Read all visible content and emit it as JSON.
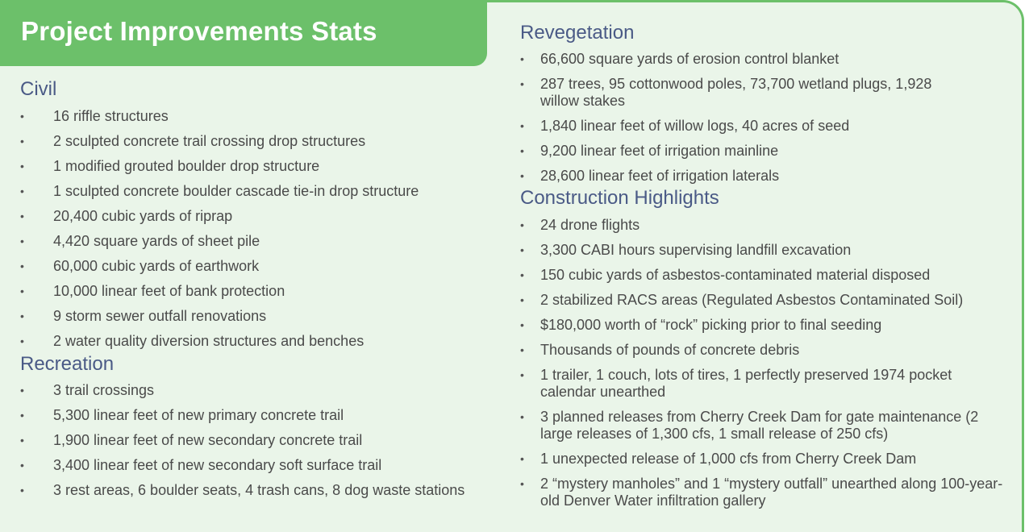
{
  "header": {
    "title": "Project Improvements Stats"
  },
  "colors": {
    "accent": "#6cc06a",
    "background": "#eaf5e9",
    "section_title": "#4a5a86",
    "body_text": "#4a4a4a"
  },
  "bullet": "•",
  "sections": {
    "civil": {
      "title": "Civil",
      "items": [
        "16 riffle structures",
        "2 sculpted concrete trail crossing drop structures",
        "1 modified grouted boulder drop structure",
        "1 sculpted concrete boulder cascade tie-in drop structure",
        "20,400 cubic yards of riprap",
        "4,420 square yards of sheet pile",
        "60,000 cubic yards of earthwork",
        "10,000 linear feet of bank protection",
        "9 storm sewer outfall renovations",
        "2 water quality diversion structures and benches"
      ]
    },
    "recreation": {
      "title": "Recreation",
      "items": [
        "3 trail crossings",
        "5,300 linear feet of new primary concrete trail",
        "1,900 linear feet of new secondary concrete trail",
        "3,400 linear feet of new secondary soft surface trail",
        "3 rest areas, 6 boulder seats, 4 trash cans, 8 dog waste stations"
      ]
    },
    "revegetation": {
      "title": "Revegetation",
      "items": [
        "66,600 square yards of erosion control blanket",
        "287 trees, 95 cottonwood poles, 73,700 wetland plugs, 1,928 willow stakes",
        "1,840 linear feet of willow logs, 40 acres of seed",
        "9,200 linear feet of irrigation mainline",
        "28,600 linear feet of irrigation laterals"
      ]
    },
    "construction": {
      "title": "Construction Highlights",
      "items": [
        "24 drone flights",
        "3,300 CABI hours supervising landfill excavation",
        "150 cubic yards of asbestos-contaminated material disposed",
        "2 stabilized RACS areas (Regulated Asbestos Contaminated Soil)",
        "$180,000 worth of “rock” picking prior to final seeding",
        "Thousands of pounds of concrete debris",
        "1 trailer, 1 couch, lots of tires, 1 perfectly preserved 1974 pocket calendar unearthed",
        "3 planned releases from Cherry Creek Dam for gate maintenance (2 large releases of 1,300 cfs, 1 small release of 250 cfs)",
        "1 unexpected release of 1,000 cfs from Cherry Creek Dam",
        "2 “mystery manholes” and 1 “mystery outfall” unearthed along 100-year-old Denver Water infiltration gallery"
      ]
    }
  }
}
